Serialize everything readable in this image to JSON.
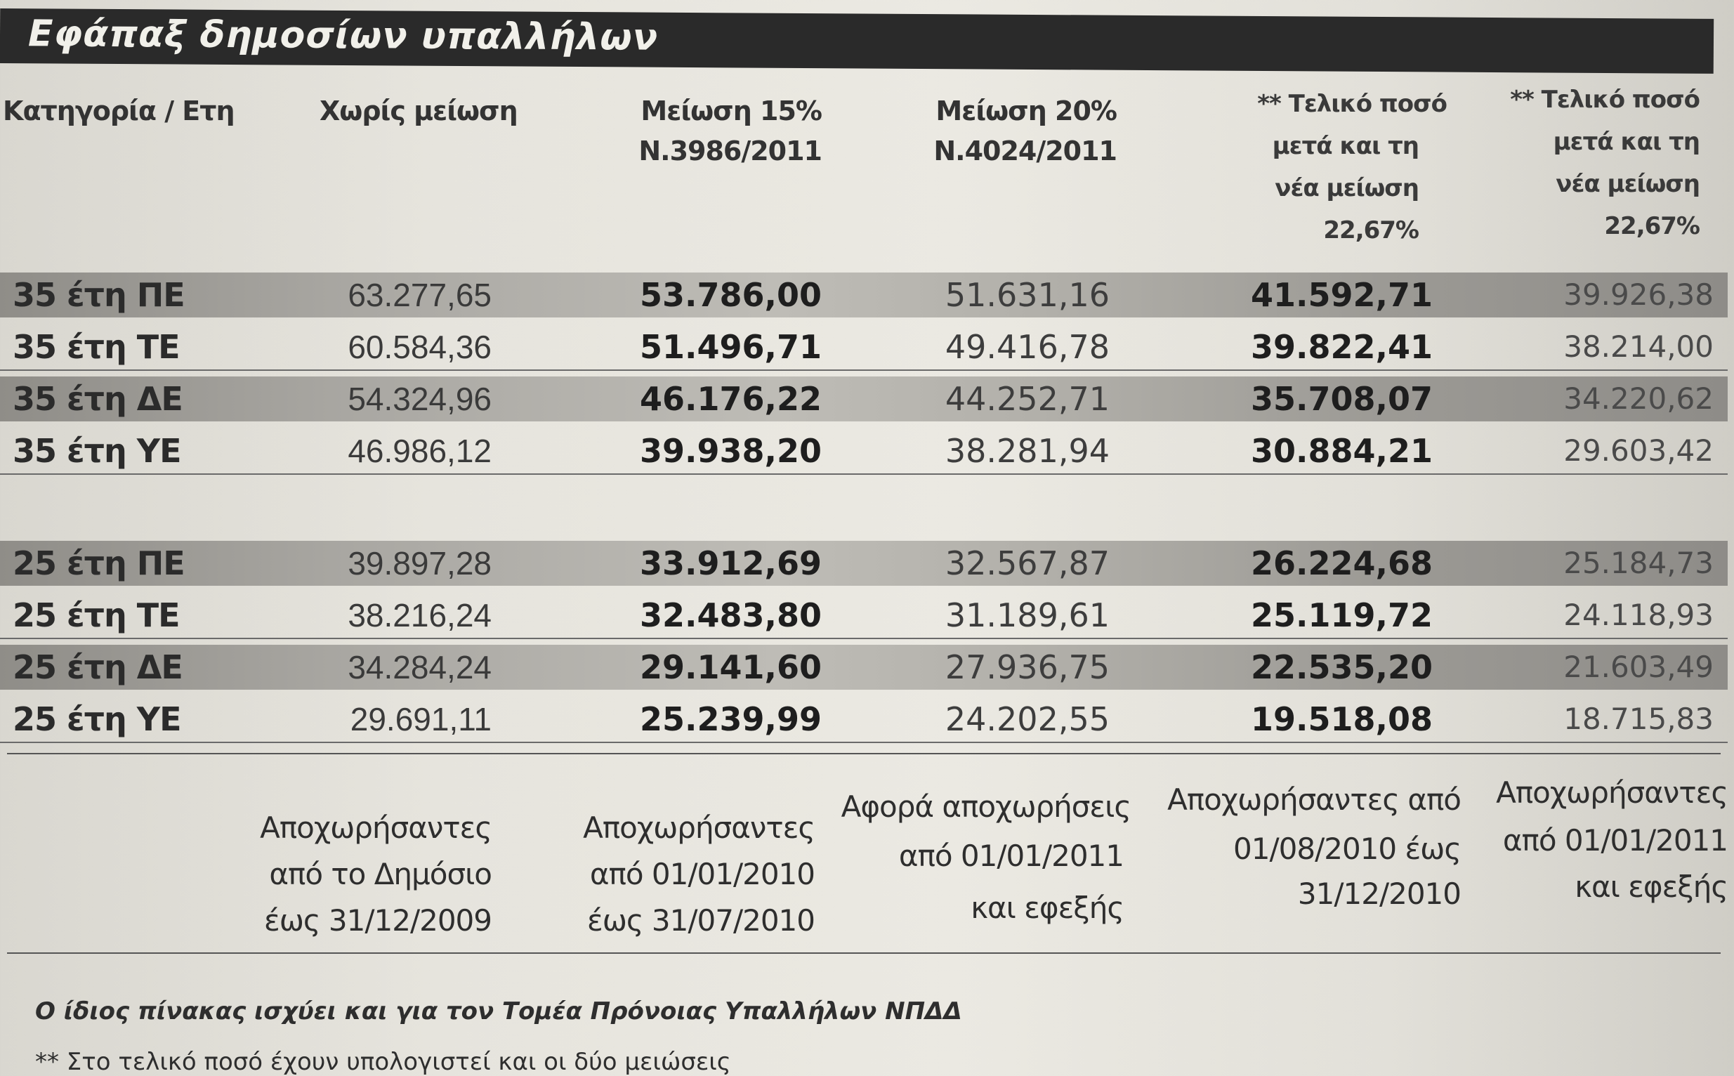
{
  "title": "Εφάπαξ δημοσίων υπαλλήλων",
  "headers": {
    "category": "Κατηγορία / Ετη",
    "no_cut": "Χωρίς μείωση",
    "cut15_line1": "Μείωση 15%",
    "cut15_line2": "Ν.3986/2011",
    "cut20_line1": "Μείωση 20%",
    "cut20_line2": "Ν.4024/2011",
    "final_a_line1": "** Τελικό ποσό",
    "final_a_line2": "μετά και τη",
    "final_a_line3": "νέα μείωση",
    "final_a_line4": "22,67%",
    "final_b_line1": "** Τελικό ποσό",
    "final_b_line2": "μετά και τη",
    "final_b_line3": "νέα μείωση",
    "final_b_line4": "22,67%"
  },
  "rows": [
    {
      "category": "35 έτη ΠΕ",
      "no_cut": "63.277,65",
      "cut15": "53.786,00",
      "cut20": "51.631,16",
      "final_a": "41.592,71",
      "final_b": "39.926,38"
    },
    {
      "category": "35 έτη ΤΕ",
      "no_cut": "60.584,36",
      "cut15": "51.496,71",
      "cut20": "49.416,78",
      "final_a": "39.822,41",
      "final_b": "38.214,00"
    },
    {
      "category": "35 έτη ΔΕ",
      "no_cut": "54.324,96",
      "cut15": "46.176,22",
      "cut20": "44.252,71",
      "final_a": "35.708,07",
      "final_b": "34.220,62"
    },
    {
      "category": "35 έτη ΥΕ",
      "no_cut": "46.986,12",
      "cut15": "39.938,20",
      "cut20": "38.281,94",
      "final_a": "30.884,21",
      "final_b": "29.603,42"
    },
    {
      "category": "25 έτη ΠΕ",
      "no_cut": "39.897,28",
      "cut15": "33.912,69",
      "cut20": "32.567,87",
      "final_a": "26.224,68",
      "final_b": "25.184,73"
    },
    {
      "category": "25 έτη ΤΕ",
      "no_cut": "38.216,24",
      "cut15": "32.483,80",
      "cut20": "31.189,61",
      "final_a": "25.119,72",
      "final_b": "24.118,93"
    },
    {
      "category": "25 έτη ΔΕ",
      "no_cut": "34.284,24",
      "cut15": "29.141,60",
      "cut20": "27.936,75",
      "final_a": "22.535,20",
      "final_b": "21.603,49"
    },
    {
      "category": "25 έτη ΥΕ",
      "no_cut": "29.691,11",
      "cut15": "25.239,99",
      "cut20": "24.202,55",
      "final_a": "19.518,08",
      "final_b": "18.715,83"
    }
  ],
  "footer": {
    "no_cut_line1": "Αποχωρήσαντες",
    "no_cut_line2": "από το Δημόσιο",
    "no_cut_line3": "έως 31/12/2009",
    "cut15_line1": "Αποχωρήσαντες",
    "cut15_line2": "από 01/01/2010",
    "cut15_line3": "έως 31/07/2010",
    "cut20_line1": "Αφορά αποχωρήσεις",
    "cut20_line2": "από 01/01/2011",
    "cut20_line3": "και εφεξής",
    "final_a_line1": "Αποχωρήσαντες από",
    "final_a_line2": "01/08/2010 έως",
    "final_a_line3": "31/12/2010",
    "final_b_line1": "Αποχωρήσαντες",
    "final_b_line2": "από 01/01/2011",
    "final_b_line3": "και εφεξής"
  },
  "notes": {
    "note1": "Ο ίδιος πίνακας ισχύει και για τον Τομέα Πρόνοιας Υπαλλήλων ΝΠΔΔ",
    "note2": "** Στο τελικό ποσό έχουν υπολογιστεί και οι δύο μειώσεις"
  }
}
